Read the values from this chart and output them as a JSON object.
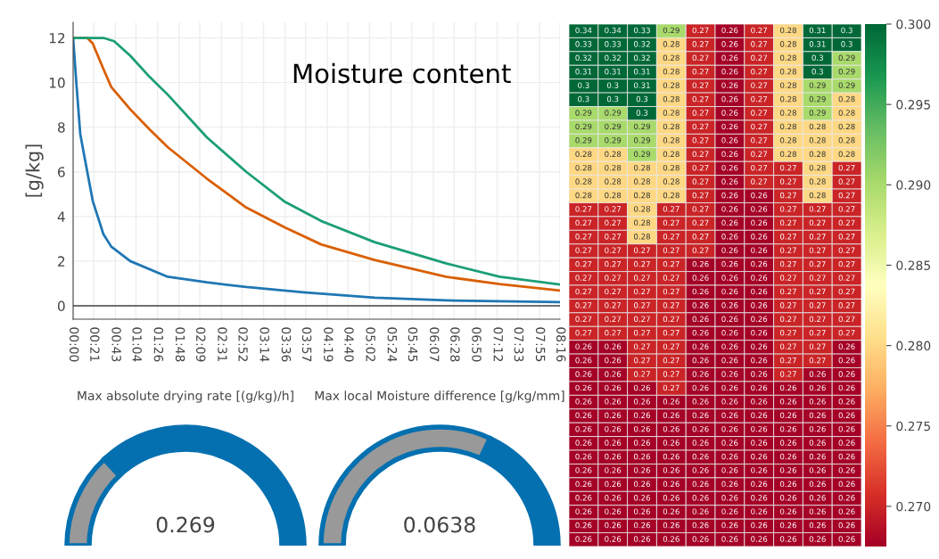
{
  "chart_data": [
    {
      "type": "line",
      "title": "Moisture content",
      "ylabel": "[g/kg]",
      "grid": true,
      "xlim": [
        0,
        8.267
      ],
      "ylim": [
        -0.6,
        12.7
      ],
      "yticks": [
        0,
        2,
        4,
        6,
        8,
        10,
        12
      ],
      "xticks": [
        {
          "value": 0,
          "label": "00:00"
        },
        {
          "value": 0.35,
          "label": "00:21"
        },
        {
          "value": 0.717,
          "label": "00:43"
        },
        {
          "value": 1.067,
          "label": "01:04"
        },
        {
          "value": 1.433,
          "label": "01:26"
        },
        {
          "value": 1.8,
          "label": "01:48"
        },
        {
          "value": 2.15,
          "label": "02:09"
        },
        {
          "value": 2.517,
          "label": "02:31"
        },
        {
          "value": 2.867,
          "label": "02:52"
        },
        {
          "value": 3.233,
          "label": "03:14"
        },
        {
          "value": 3.6,
          "label": "03:36"
        },
        {
          "value": 3.95,
          "label": "03:57"
        },
        {
          "value": 4.317,
          "label": "04:19"
        },
        {
          "value": 4.667,
          "label": "04:40"
        },
        {
          "value": 5.033,
          "label": "05:02"
        },
        {
          "value": 5.4,
          "label": "05:24"
        },
        {
          "value": 5.75,
          "label": "05:45"
        },
        {
          "value": 6.117,
          "label": "06:07"
        },
        {
          "value": 6.467,
          "label": "06:28"
        },
        {
          "value": 6.833,
          "label": "06:50"
        },
        {
          "value": 7.2,
          "label": "07:12"
        },
        {
          "value": 7.55,
          "label": "07:33"
        },
        {
          "value": 7.917,
          "label": "07:55"
        },
        {
          "value": 8.267,
          "label": "08:16"
        }
      ],
      "ref_lines": [
        {
          "axis": "y",
          "value": 0,
          "color": "#444444"
        }
      ],
      "series": [
        {
          "color": "#1f77b4",
          "x": [
            0,
            0.06,
            0.121,
            0.212,
            0.333,
            0.515,
            0.648,
            0.97,
            1.606,
            2.27,
            2.94,
            3.91,
            5.12,
            6.33,
            8.267
          ],
          "values": [
            12,
            9.8,
            7.7,
            6.4,
            4.7,
            3.2,
            2.65,
            2.0,
            1.3,
            1.05,
            0.84,
            0.6,
            0.36,
            0.24,
            0.16
          ]
        },
        {
          "color": "#d95f02",
          "x": [
            0,
            0.24,
            0.333,
            0.515,
            0.648,
            0.97,
            1.3,
            1.61,
            2.27,
            2.94,
            3.6,
            4.21,
            5.12,
            6.33,
            7.24,
            8.267
          ],
          "values": [
            12,
            12,
            11.75,
            10.6,
            9.8,
            8.8,
            7.9,
            7.1,
            5.7,
            4.4,
            3.5,
            2.75,
            2.05,
            1.3,
            0.97,
            0.68
          ]
        },
        {
          "color": "#1b9e77",
          "x": [
            0,
            0.515,
            0.697,
            0.97,
            1.3,
            1.61,
            2.27,
            2.94,
            3.6,
            4.21,
            5.12,
            6.33,
            7.24,
            8.267
          ],
          "values": [
            12,
            12,
            11.85,
            11.2,
            10.25,
            9.45,
            7.55,
            6.0,
            4.65,
            3.8,
            2.85,
            1.9,
            1.3,
            0.95
          ]
        }
      ]
    },
    {
      "type": "heatmap",
      "data_labels": true,
      "clim": [
        0.2675,
        0.3
      ],
      "cticks": [
        {
          "value": 0.27,
          "label": "0.270"
        },
        {
          "value": 0.275,
          "label": "0.275"
        },
        {
          "value": 0.28,
          "label": "0.280"
        },
        {
          "value": 0.285,
          "label": "0.285"
        },
        {
          "value": 0.29,
          "label": "0.290"
        },
        {
          "value": 0.295,
          "label": "0.295"
        },
        {
          "value": 0.3,
          "label": "0.300"
        }
      ],
      "categories": [
        null,
        null,
        null,
        null,
        null,
        null,
        null,
        null,
        null,
        null
      ],
      "y_categories": [
        null,
        null,
        null,
        null,
        null,
        null,
        null,
        null,
        null,
        null,
        null,
        null,
        null,
        null,
        null,
        null,
        null,
        null,
        null,
        null,
        null,
        null,
        null,
        null,
        null,
        null,
        null,
        null,
        null,
        null,
        null,
        null,
        null,
        null,
        null,
        null,
        null,
        null
      ],
      "cells": [
        [
          0.34,
          0.34,
          0.33,
          0.29,
          0.27,
          0.26,
          0.27,
          0.28,
          0.31,
          0.3
        ],
        [
          0.33,
          0.33,
          0.32,
          0.28,
          0.27,
          0.26,
          0.27,
          0.28,
          0.31,
          0.3
        ],
        [
          0.32,
          0.32,
          0.32,
          0.28,
          0.27,
          0.26,
          0.27,
          0.28,
          0.3,
          0.29
        ],
        [
          0.31,
          0.31,
          0.31,
          0.28,
          0.27,
          0.26,
          0.27,
          0.28,
          0.3,
          0.29
        ],
        [
          0.3,
          0.3,
          0.31,
          0.28,
          0.27,
          0.26,
          0.27,
          0.28,
          0.29,
          0.29
        ],
        [
          0.3,
          0.3,
          0.3,
          0.28,
          0.27,
          0.26,
          0.27,
          0.28,
          0.29,
          0.28
        ],
        [
          0.29,
          0.29,
          0.3,
          0.28,
          0.27,
          0.26,
          0.27,
          0.28,
          0.29,
          0.28
        ],
        [
          0.29,
          0.29,
          0.29,
          0.28,
          0.27,
          0.26,
          0.27,
          0.28,
          0.28,
          0.28
        ],
        [
          0.29,
          0.29,
          0.29,
          0.28,
          0.27,
          0.26,
          0.27,
          0.28,
          0.28,
          0.28
        ],
        [
          0.28,
          0.28,
          0.29,
          0.28,
          0.27,
          0.26,
          0.27,
          0.28,
          0.28,
          0.28
        ],
        [
          0.28,
          0.28,
          0.28,
          0.28,
          0.27,
          0.26,
          0.27,
          0.27,
          0.28,
          0.27
        ],
        [
          0.28,
          0.28,
          0.28,
          0.28,
          0.27,
          0.26,
          0.27,
          0.27,
          0.28,
          0.27
        ],
        [
          0.28,
          0.28,
          0.28,
          0.28,
          0.27,
          0.26,
          0.26,
          0.27,
          0.28,
          0.27
        ],
        [
          0.27,
          0.27,
          0.28,
          0.27,
          0.27,
          0.26,
          0.26,
          0.27,
          0.27,
          0.27
        ],
        [
          0.27,
          0.27,
          0.28,
          0.27,
          0.27,
          0.26,
          0.26,
          0.27,
          0.27,
          0.27
        ],
        [
          0.27,
          0.27,
          0.28,
          0.27,
          0.27,
          0.26,
          0.26,
          0.27,
          0.27,
          0.27
        ],
        [
          0.27,
          0.27,
          0.27,
          0.27,
          0.27,
          0.26,
          0.26,
          0.27,
          0.27,
          0.27
        ],
        [
          0.27,
          0.27,
          0.27,
          0.27,
          0.26,
          0.26,
          0.26,
          0.27,
          0.27,
          0.27
        ],
        [
          0.27,
          0.27,
          0.27,
          0.27,
          0.26,
          0.26,
          0.26,
          0.27,
          0.27,
          0.27
        ],
        [
          0.27,
          0.27,
          0.27,
          0.27,
          0.26,
          0.26,
          0.26,
          0.27,
          0.27,
          0.27
        ],
        [
          0.27,
          0.27,
          0.27,
          0.27,
          0.26,
          0.26,
          0.26,
          0.27,
          0.27,
          0.27
        ],
        [
          0.27,
          0.27,
          0.27,
          0.27,
          0.26,
          0.26,
          0.26,
          0.27,
          0.27,
          0.27
        ],
        [
          0.27,
          0.27,
          0.27,
          0.27,
          0.26,
          0.26,
          0.26,
          0.27,
          0.27,
          0.27
        ],
        [
          0.26,
          0.26,
          0.27,
          0.27,
          0.26,
          0.26,
          0.26,
          0.27,
          0.27,
          0.26
        ],
        [
          0.26,
          0.26,
          0.27,
          0.27,
          0.26,
          0.26,
          0.26,
          0.27,
          0.27,
          0.26
        ],
        [
          0.26,
          0.26,
          0.27,
          0.27,
          0.26,
          0.26,
          0.26,
          0.27,
          0.26,
          0.26
        ],
        [
          0.26,
          0.26,
          0.26,
          0.27,
          0.26,
          0.26,
          0.26,
          0.26,
          0.26,
          0.26
        ],
        [
          0.26,
          0.26,
          0.26,
          0.26,
          0.26,
          0.26,
          0.26,
          0.26,
          0.26,
          0.26
        ],
        [
          0.26,
          0.26,
          0.26,
          0.26,
          0.26,
          0.26,
          0.26,
          0.26,
          0.26,
          0.26
        ],
        [
          0.26,
          0.26,
          0.26,
          0.26,
          0.26,
          0.26,
          0.26,
          0.26,
          0.26,
          0.26
        ],
        [
          0.26,
          0.26,
          0.26,
          0.26,
          0.26,
          0.26,
          0.26,
          0.26,
          0.26,
          0.26
        ],
        [
          0.26,
          0.26,
          0.26,
          0.26,
          0.26,
          0.26,
          0.26,
          0.26,
          0.26,
          0.26
        ],
        [
          0.26,
          0.26,
          0.26,
          0.26,
          0.26,
          0.26,
          0.26,
          0.26,
          0.26,
          0.26
        ],
        [
          0.26,
          0.26,
          0.26,
          0.26,
          0.26,
          0.26,
          0.26,
          0.26,
          0.26,
          0.26
        ],
        [
          0.26,
          0.26,
          0.26,
          0.26,
          0.26,
          0.26,
          0.26,
          0.26,
          0.26,
          0.26
        ],
        [
          0.26,
          0.26,
          0.26,
          0.26,
          0.26,
          0.26,
          0.26,
          0.26,
          0.26,
          0.26
        ],
        [
          0.26,
          0.26,
          0.26,
          0.26,
          0.26,
          0.26,
          0.26,
          0.26,
          0.26,
          0.26
        ],
        [
          0.26,
          0.26,
          0.26,
          0.26,
          0.26,
          0.26,
          0.26,
          0.26,
          0.26,
          0.26
        ]
      ]
    },
    {
      "type": "donut",
      "title": "Max absolute drying rate [(g/kg)/h]",
      "categories": [
        null,
        null
      ],
      "values": [
        26,
        74
      ],
      "colors": [
        "#999999",
        "#0570b0"
      ],
      "annotations": [
        "0.269"
      ]
    },
    {
      "type": "donut",
      "title": "Max local Moisture difference [g/kg/mm]",
      "categories": [
        null,
        null
      ],
      "values": [
        64,
        36
      ],
      "colors": [
        "#999999",
        "#0570b0"
      ],
      "annotations": [
        "0.0638"
      ]
    }
  ]
}
